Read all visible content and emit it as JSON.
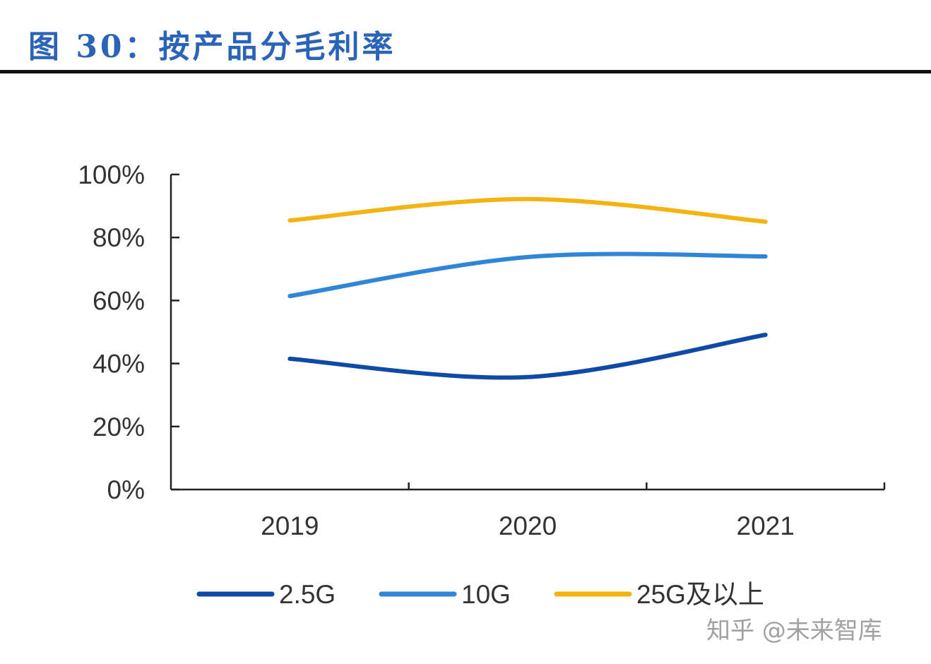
{
  "title": "图 30：按产品分毛利率",
  "watermark": "知乎 @未来智库",
  "chart_data": {
    "type": "line",
    "title": "图 30：按产品分毛利率",
    "categories": [
      "2019",
      "2020",
      "2021"
    ],
    "yticks": [
      "0%",
      "20%",
      "40%",
      "60%",
      "80%",
      "100%"
    ],
    "ylim": [
      0,
      100
    ],
    "grid": false,
    "smooth": true,
    "legend_position": "bottom",
    "series": [
      {
        "name": "2.5G",
        "color": "#0e4aa6",
        "values": [
          41.5,
          35.7,
          49.1
        ]
      },
      {
        "name": "10G",
        "color": "#2f86d6",
        "values": [
          61.4,
          73.8,
          74.0
        ]
      },
      {
        "name": "25G及以上",
        "color": "#f5b311",
        "values": [
          85.4,
          92.2,
          85.0
        ]
      }
    ]
  }
}
